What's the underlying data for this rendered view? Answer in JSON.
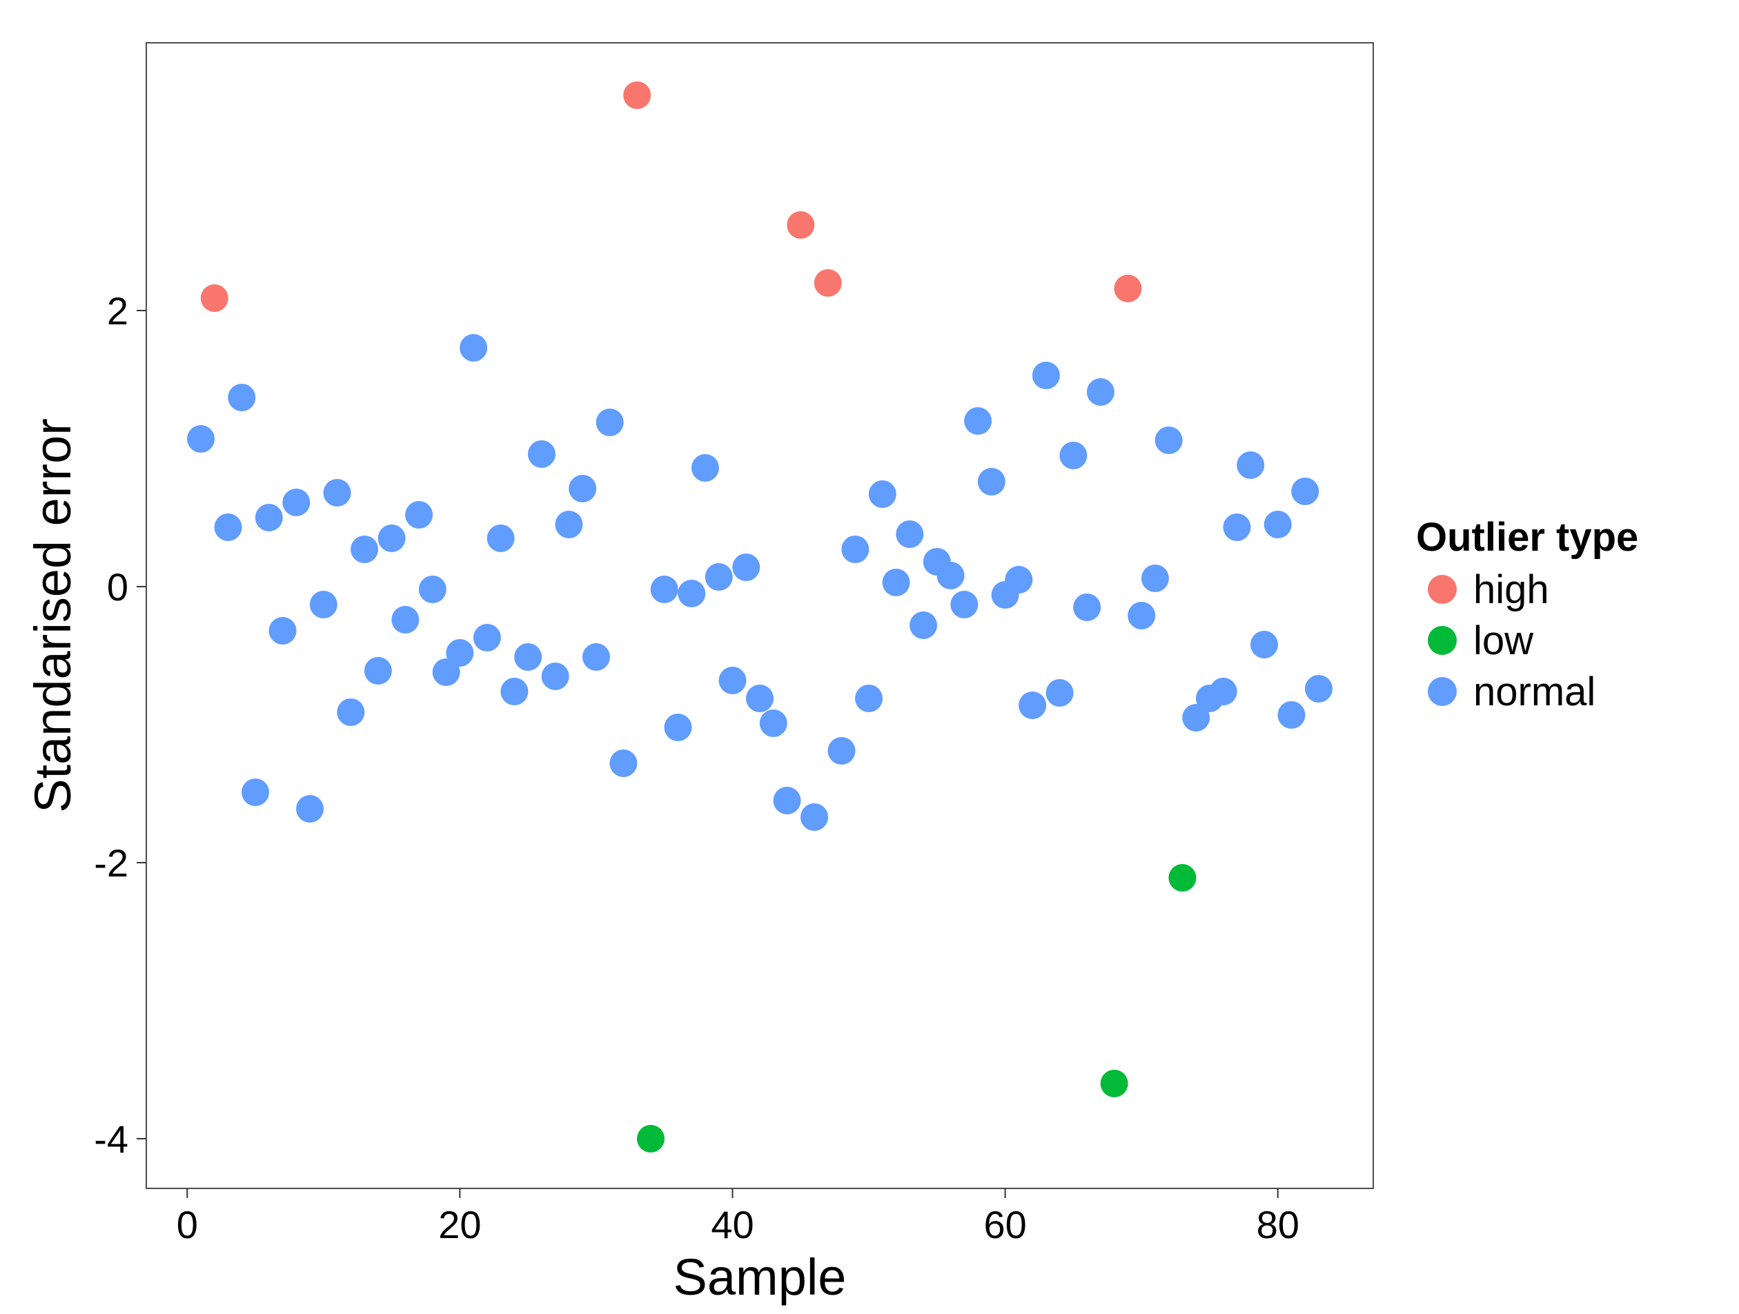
{
  "chart_data": {
    "type": "scatter",
    "xlabel": "Sample",
    "ylabel": "Standarised error",
    "xlim": [
      -3,
      87
    ],
    "ylim": [
      -4.36,
      3.94
    ],
    "xticks": [
      0,
      20,
      40,
      60,
      80
    ],
    "yticks": [
      -4,
      -2,
      0,
      2
    ],
    "ytick_labels": [
      "-4",
      "-2",
      "0",
      "2"
    ],
    "grid": false,
    "legend": {
      "title": "Outlier type",
      "position": "right",
      "entries": [
        {
          "key": "high",
          "label": "high",
          "color": "#F8766D"
        },
        {
          "key": "low",
          "label": "low",
          "color": "#00BA38"
        },
        {
          "key": "normal",
          "label": "normal",
          "color": "#619CFF"
        }
      ]
    },
    "points": [
      {
        "x": 1,
        "y": 1.07,
        "type": "normal"
      },
      {
        "x": 2,
        "y": 2.09,
        "type": "high"
      },
      {
        "x": 3,
        "y": 0.43,
        "type": "normal"
      },
      {
        "x": 4,
        "y": 1.37,
        "type": "normal"
      },
      {
        "x": 5,
        "y": -1.49,
        "type": "normal"
      },
      {
        "x": 6,
        "y": 0.5,
        "type": "normal"
      },
      {
        "x": 7,
        "y": -0.32,
        "type": "normal"
      },
      {
        "x": 8,
        "y": 0.61,
        "type": "normal"
      },
      {
        "x": 9,
        "y": -1.61,
        "type": "normal"
      },
      {
        "x": 10,
        "y": -0.13,
        "type": "normal"
      },
      {
        "x": 11,
        "y": 0.68,
        "type": "normal"
      },
      {
        "x": 12,
        "y": -0.91,
        "type": "normal"
      },
      {
        "x": 13,
        "y": 0.27,
        "type": "normal"
      },
      {
        "x": 14,
        "y": -0.61,
        "type": "normal"
      },
      {
        "x": 15,
        "y": 0.35,
        "type": "normal"
      },
      {
        "x": 16,
        "y": -0.24,
        "type": "normal"
      },
      {
        "x": 17,
        "y": 0.52,
        "type": "normal"
      },
      {
        "x": 18,
        "y": -0.02,
        "type": "normal"
      },
      {
        "x": 19,
        "y": -0.62,
        "type": "normal"
      },
      {
        "x": 20,
        "y": -0.48,
        "type": "normal"
      },
      {
        "x": 21,
        "y": 1.73,
        "type": "normal"
      },
      {
        "x": 22,
        "y": -0.37,
        "type": "normal"
      },
      {
        "x": 23,
        "y": 0.35,
        "type": "normal"
      },
      {
        "x": 24,
        "y": -0.76,
        "type": "normal"
      },
      {
        "x": 25,
        "y": -0.51,
        "type": "normal"
      },
      {
        "x": 26,
        "y": 0.96,
        "type": "normal"
      },
      {
        "x": 27,
        "y": -0.65,
        "type": "normal"
      },
      {
        "x": 28,
        "y": 0.45,
        "type": "normal"
      },
      {
        "x": 29,
        "y": 0.71,
        "type": "normal"
      },
      {
        "x": 30,
        "y": -0.51,
        "type": "normal"
      },
      {
        "x": 31,
        "y": 1.19,
        "type": "normal"
      },
      {
        "x": 32,
        "y": -1.28,
        "type": "normal"
      },
      {
        "x": 33,
        "y": 3.56,
        "type": "high"
      },
      {
        "x": 34,
        "y": -4.0,
        "type": "low"
      },
      {
        "x": 35,
        "y": -0.02,
        "type": "normal"
      },
      {
        "x": 36,
        "y": -1.02,
        "type": "normal"
      },
      {
        "x": 37,
        "y": -0.05,
        "type": "normal"
      },
      {
        "x": 38,
        "y": 0.86,
        "type": "normal"
      },
      {
        "x": 39,
        "y": 0.07,
        "type": "normal"
      },
      {
        "x": 40,
        "y": -0.68,
        "type": "normal"
      },
      {
        "x": 41,
        "y": 0.14,
        "type": "normal"
      },
      {
        "x": 42,
        "y": -0.81,
        "type": "normal"
      },
      {
        "x": 43,
        "y": -0.99,
        "type": "normal"
      },
      {
        "x": 44,
        "y": -1.55,
        "type": "normal"
      },
      {
        "x": 45,
        "y": 2.62,
        "type": "high"
      },
      {
        "x": 46,
        "y": -1.67,
        "type": "normal"
      },
      {
        "x": 47,
        "y": 2.2,
        "type": "high"
      },
      {
        "x": 48,
        "y": -1.19,
        "type": "normal"
      },
      {
        "x": 49,
        "y": 0.27,
        "type": "normal"
      },
      {
        "x": 50,
        "y": -0.81,
        "type": "normal"
      },
      {
        "x": 51,
        "y": 0.67,
        "type": "normal"
      },
      {
        "x": 52,
        "y": 0.03,
        "type": "normal"
      },
      {
        "x": 53,
        "y": 0.38,
        "type": "normal"
      },
      {
        "x": 54,
        "y": -0.28,
        "type": "normal"
      },
      {
        "x": 55,
        "y": 0.18,
        "type": "normal"
      },
      {
        "x": 56,
        "y": 0.08,
        "type": "normal"
      },
      {
        "x": 57,
        "y": -0.13,
        "type": "normal"
      },
      {
        "x": 58,
        "y": 1.2,
        "type": "normal"
      },
      {
        "x": 59,
        "y": 0.76,
        "type": "normal"
      },
      {
        "x": 60,
        "y": -0.06,
        "type": "normal"
      },
      {
        "x": 61,
        "y": 0.05,
        "type": "normal"
      },
      {
        "x": 62,
        "y": -0.86,
        "type": "normal"
      },
      {
        "x": 63,
        "y": 1.53,
        "type": "normal"
      },
      {
        "x": 64,
        "y": -0.77,
        "type": "normal"
      },
      {
        "x": 65,
        "y": 0.95,
        "type": "normal"
      },
      {
        "x": 66,
        "y": -0.15,
        "type": "normal"
      },
      {
        "x": 67,
        "y": 1.41,
        "type": "normal"
      },
      {
        "x": 68,
        "y": -3.6,
        "type": "low"
      },
      {
        "x": 69,
        "y": 2.16,
        "type": "high"
      },
      {
        "x": 70,
        "y": -0.21,
        "type": "normal"
      },
      {
        "x": 71,
        "y": 0.06,
        "type": "normal"
      },
      {
        "x": 72,
        "y": 1.06,
        "type": "normal"
      },
      {
        "x": 73,
        "y": -2.11,
        "type": "low"
      },
      {
        "x": 74,
        "y": -0.95,
        "type": "normal"
      },
      {
        "x": 75,
        "y": -0.81,
        "type": "normal"
      },
      {
        "x": 76,
        "y": -0.76,
        "type": "normal"
      },
      {
        "x": 77,
        "y": 0.43,
        "type": "normal"
      },
      {
        "x": 78,
        "y": 0.88,
        "type": "normal"
      },
      {
        "x": 79,
        "y": -0.42,
        "type": "normal"
      },
      {
        "x": 80,
        "y": 0.45,
        "type": "normal"
      },
      {
        "x": 81,
        "y": -0.93,
        "type": "normal"
      },
      {
        "x": 82,
        "y": 0.69,
        "type": "normal"
      },
      {
        "x": 83,
        "y": -0.74,
        "type": "normal"
      }
    ]
  }
}
